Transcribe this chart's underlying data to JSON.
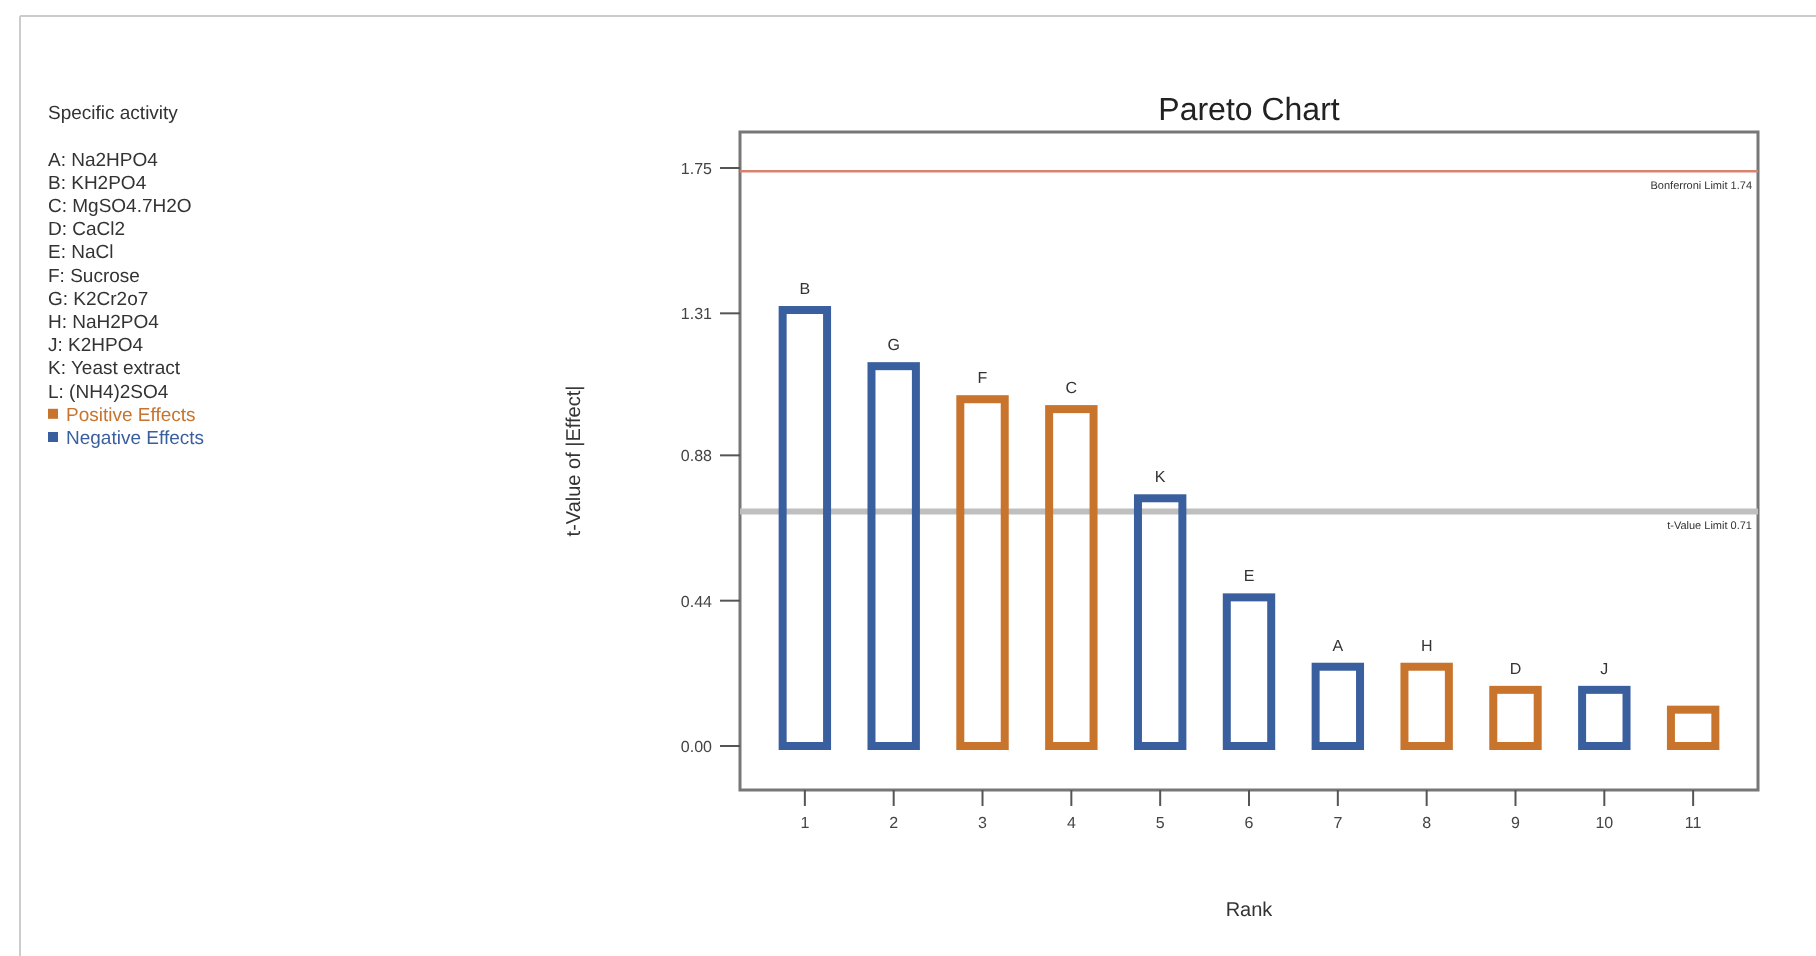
{
  "chart_data": {
    "type": "bar",
    "title": "Pareto Chart",
    "subtitle": "Specific activity",
    "xlabel": "Rank",
    "ylabel": "t-Value of |Effect|",
    "categories": [
      "1",
      "2",
      "3",
      "4",
      "5",
      "6",
      "7",
      "8",
      "9",
      "10",
      "11"
    ],
    "stacked": true,
    "series": [
      {
        "name": "Positive Effects",
        "color": "#c8742c",
        "values": [
          null,
          null,
          1.05,
          1.02,
          null,
          null,
          null,
          0.24,
          0.17,
          null,
          0.11
        ]
      },
      {
        "name": "Negative Effects",
        "color": "#3a5f9e",
        "values": [
          1.32,
          1.15,
          null,
          null,
          0.75,
          0.45,
          0.24,
          null,
          null,
          0.17,
          null
        ]
      }
    ],
    "ylim": [
      0,
      1.75
    ],
    "yticks": [
      {
        "value": 0,
        "label": "0.00"
      },
      0.44,
      0.88,
      1.31,
      1.75
    ],
    "ref_lines": [
      {
        "axis": "y",
        "value": 1.74,
        "label": "Bonferroni Limit 1.74",
        "color": "#d9826e"
      },
      {
        "axis": "y",
        "value": 0.71,
        "label": "t-Value Limit 0.71",
        "color": "#bfbfbf"
      }
    ],
    "annotations": [
      "A: Na2HPO4",
      "B: KH2PO4",
      "C: MgSO4.7H2O",
      "D: CaCl2",
      "E: NaCl",
      "F: Sucrose",
      "G: K2Cr2o7",
      "H: NaH2PO4",
      "J: K2HPO4",
      "K: Yeast extract",
      "L: (NH4)2SO4",
      {
        "text": "B",
        "x": "1",
        "y": 1.32
      },
      {
        "text": "G",
        "x": "2",
        "y": 1.15
      },
      {
        "text": "F",
        "x": "3",
        "y": 1.05
      },
      {
        "text": "C",
        "x": "4",
        "y": 1.02
      },
      {
        "text": "K",
        "x": "5",
        "y": 0.75
      },
      {
        "text": "E",
        "x": "6",
        "y": 0.45
      },
      {
        "text": "A",
        "x": "7",
        "y": 0.24
      },
      {
        "text": "H",
        "x": "8",
        "y": 0.24
      },
      {
        "text": "D",
        "x": "9",
        "y": 0.17
      },
      {
        "text": "J",
        "x": "10",
        "y": 0.17
      }
    ],
    "legend": "left",
    "grid": false
  }
}
